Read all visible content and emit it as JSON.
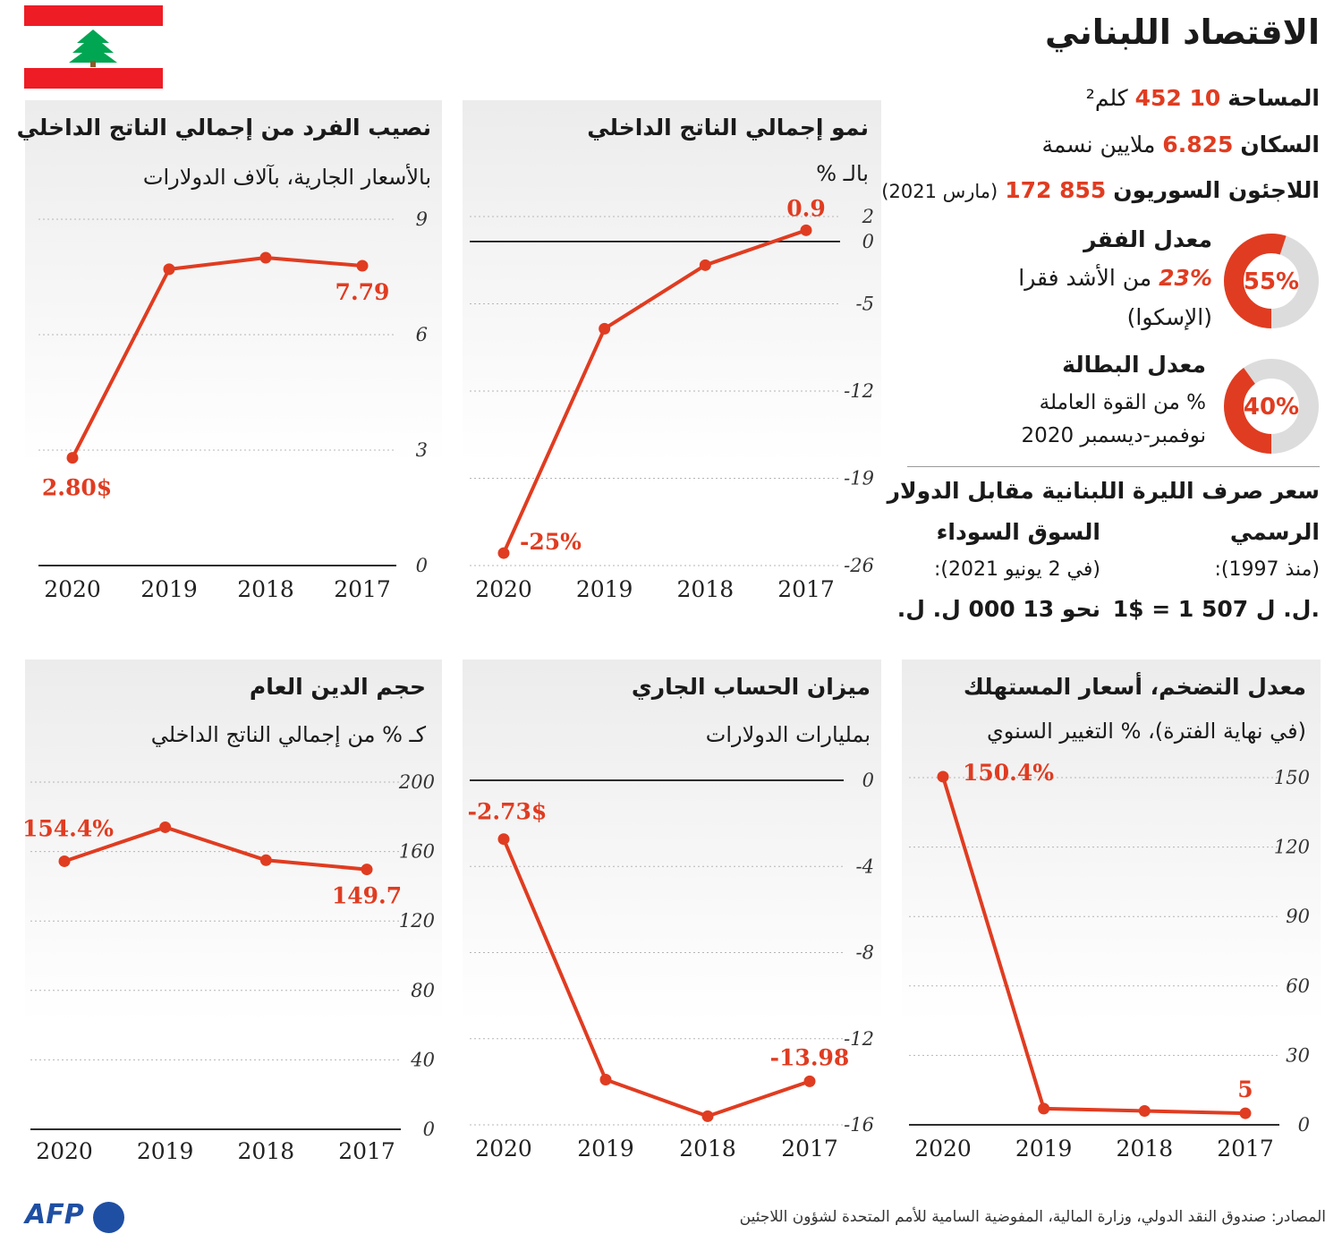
{
  "header": {
    "title": "الاقتصاد اللبناني"
  },
  "facts": {
    "area_label": "المساحة",
    "area_value": "10 452",
    "area_unit": "كلم²",
    "pop_label": "السكان",
    "pop_value": "6.825",
    "pop_unit": "ملايين نسمة",
    "refugees_label": "اللاجئون السوريون",
    "refugees_value": "855 172",
    "refugees_note": "(مارس 2021)",
    "poverty_title": "معدل الفقر",
    "poverty_value": "23%",
    "poverty_desc": "من الأشد فقرا",
    "poverty_source": "(الإسكوا)",
    "poverty_donut": "55%",
    "poverty_fraction": 0.55,
    "unemp_title": "معدل البطالة",
    "unemp_desc": "% من القوة العاملة",
    "unemp_period": "نوفمبر-ديسمبر 2020",
    "unemp_donut": "40%",
    "unemp_fraction": 0.4
  },
  "exchange": {
    "title": "سعر صرف الليرة اللبنانية مقابل الدولار",
    "official_label": "الرسمي",
    "official_since": "(منذ 1997):",
    "official_value": "1$ = 1 507 ل. ل.",
    "black_label": "السوق السوداء",
    "black_date": "(في 2 يونيو 2021):",
    "black_value": "نحو 13 000 ل. ل."
  },
  "colors": {
    "accent": "#e03c21",
    "flag_red": "#ee1c25",
    "cedar": "#00a651",
    "logo_blue": "#1f4fa3"
  },
  "icons": {
    "flag": "lebanon-flag",
    "logo": "afp-logo"
  },
  "footer": {
    "source": "المصادر: صندوق النقد الدولي، وزارة المالية، المفوضية السامية للأمم المتحدة لشؤون اللاجئين",
    "logo_text": "AFP"
  },
  "chart_data": [
    {
      "id": "gdp-per-capita",
      "type": "line",
      "title": "نصيب الفرد من إجمالي الناتج الداخلي",
      "subtitle": "بالأسعار الجارية، بآلاف الدولارات",
      "categories": [
        "2020",
        "2019",
        "2018",
        "2017"
      ],
      "values": [
        2.8,
        7.7,
        8.0,
        7.79
      ],
      "ylim": [
        0,
        9
      ],
      "yticks": [
        0,
        3,
        6,
        9
      ],
      "labels": [
        {
          "index": 0,
          "text": "2.80$"
        },
        {
          "index": 3,
          "text": "7.79"
        }
      ],
      "grid": true
    },
    {
      "id": "gdp-growth",
      "type": "line",
      "title": "نمو إجمالي الناتج الداخلي",
      "subtitle": "بالـ %",
      "categories": [
        "2020",
        "2019",
        "2018",
        "2017"
      ],
      "values": [
        -25,
        -7.0,
        -1.9,
        0.9
      ],
      "ylim": [
        -26,
        2
      ],
      "yticks": [
        2,
        0,
        -5,
        -12,
        -19,
        -26
      ],
      "tick_labels": [
        "2",
        "0",
        "-5",
        "-12",
        "-19",
        "-26"
      ],
      "labels": [
        {
          "index": 0,
          "text": "-25%"
        },
        {
          "index": 3,
          "text": "0.9"
        }
      ],
      "zero_line": true,
      "grid": true
    },
    {
      "id": "public-debt",
      "type": "line",
      "title": "حجم الدين العام",
      "subtitle": "كـ % من إجمالي الناتج الداخلي",
      "categories": [
        "2020",
        "2019",
        "2018",
        "2017"
      ],
      "values": [
        154.4,
        174,
        155,
        149.7
      ],
      "ylim": [
        0,
        200
      ],
      "yticks": [
        0,
        40,
        80,
        120,
        160,
        200
      ],
      "labels": [
        {
          "index": 0,
          "text": "154.4%"
        },
        {
          "index": 3,
          "text": "149.7"
        }
      ],
      "grid": true
    },
    {
      "id": "current-account",
      "type": "line",
      "title": "ميزان الحساب الجاري",
      "subtitle": "بمليارات الدولارات",
      "categories": [
        "2020",
        "2019",
        "2018",
        "2017"
      ],
      "values": [
        -2.73,
        -13.9,
        -15.6,
        -13.98
      ],
      "ylim": [
        -16,
        0
      ],
      "yticks": [
        0,
        -4,
        -8,
        -12,
        -16
      ],
      "tick_labels": [
        "0",
        "-4",
        "-8",
        "-12",
        "-16"
      ],
      "labels": [
        {
          "index": 0,
          "text": "-2.73$"
        },
        {
          "index": 3,
          "text": "-13.98"
        }
      ],
      "zero_line": true,
      "grid": true
    },
    {
      "id": "inflation",
      "type": "line",
      "title": "معدل التضخم، أسعار المستهلك",
      "subtitle": "(في نهاية الفترة)، % التغيير السنوي",
      "categories": [
        "2020",
        "2019",
        "2018",
        "2017"
      ],
      "values": [
        150.4,
        7,
        6,
        5
      ],
      "ylim": [
        0,
        150
      ],
      "yticks": [
        0,
        30,
        60,
        90,
        120,
        150
      ],
      "labels": [
        {
          "index": 0,
          "text": "150.4%"
        },
        {
          "index": 3,
          "text": "5"
        }
      ],
      "grid": true
    }
  ]
}
